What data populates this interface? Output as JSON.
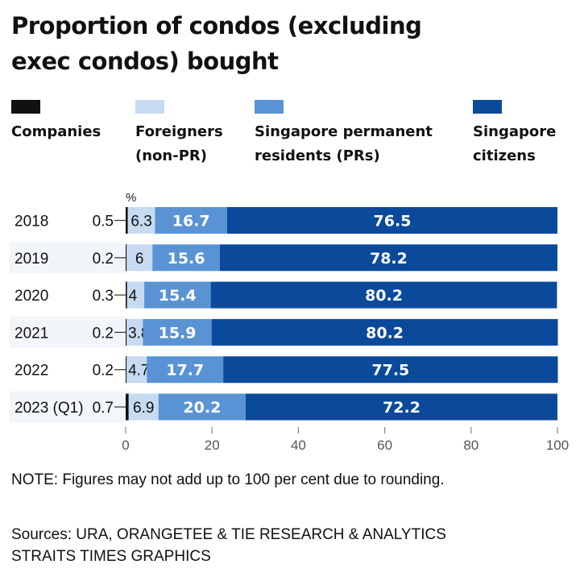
{
  "chart_data": {
    "type": "bar",
    "stacked": true,
    "orientation": "horizontal",
    "title": "Proportion of condos (excluding exec condos) bought",
    "unit_label": "%",
    "categories": [
      "2018",
      "2019",
      "2020",
      "2021",
      "2022",
      "2023 (Q1)"
    ],
    "series": [
      {
        "name": "Companies",
        "color": "#111111",
        "values": [
          0.5,
          0.2,
          0.3,
          0.2,
          0.2,
          0.7
        ]
      },
      {
        "name": "Foreigners\n(non-PR)",
        "color": "#c6dbf1",
        "values": [
          6.3,
          6,
          4,
          3.8,
          4.7,
          6.9
        ]
      },
      {
        "name": "Singapore permanent\nresidents (PRs)",
        "color": "#5a93d4",
        "values": [
          16.7,
          15.6,
          15.4,
          15.9,
          17.7,
          20.2
        ]
      },
      {
        "name": "Singapore\ncitizens",
        "color": "#0b4a9b",
        "values": [
          76.5,
          78.2,
          80.2,
          80.2,
          77.5,
          72.2
        ]
      }
    ],
    "xlim": [
      0,
      100
    ],
    "xticks": [
      0,
      20,
      40,
      60,
      80,
      100
    ],
    "grid": false,
    "legend_position": "top"
  },
  "note": "NOTE: Figures may not add up to 100 per cent due to rounding.",
  "sources": [
    "Sources: URA, ORANGETEE & TIE RESEARCH & ANALYTICS",
    "STRAITS TIMES GRAPHICS"
  ]
}
